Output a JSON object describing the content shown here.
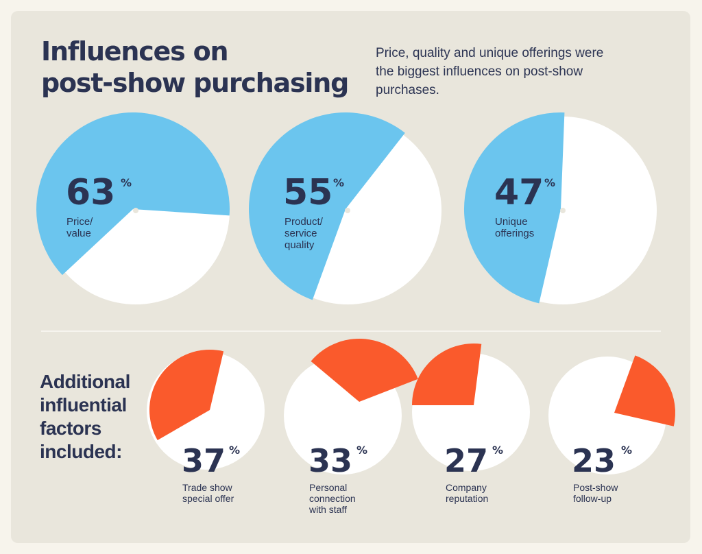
{
  "header": {
    "title_line1": "Influences on",
    "title_line2": "post-show purchasing",
    "subtitle": "Price, quality and unique offerings were the biggest influences on post-show purchases."
  },
  "additional": {
    "line1": "Additional",
    "line2": "influential",
    "line3": "factors",
    "line4": "included:"
  },
  "colors": {
    "primary": "#6bc5ee",
    "secondary": "#fa5a2c",
    "remainder": "#ffffff",
    "text": "#2b3352"
  },
  "chart_data": [
    {
      "type": "pie",
      "group": "main",
      "title": "",
      "categories": [
        "Price/ value",
        "Product/ service quality",
        "Unique offerings"
      ],
      "series": [
        {
          "values": [
            63,
            55,
            47
          ],
          "labels": [
            [
              "Price/",
              "value"
            ],
            [
              "Product/",
              "service",
              "quality"
            ],
            [
              "Unique",
              "offerings"
            ]
          ]
        }
      ],
      "unit": "%"
    },
    {
      "type": "pie",
      "group": "additional",
      "title": "",
      "categories": [
        "Trade show special offer",
        "Personal connection with staff",
        "Company reputation",
        "Post-show follow-up"
      ],
      "series": [
        {
          "values": [
            37,
            33,
            27,
            23
          ],
          "labels": [
            [
              "Trade show",
              "special offer"
            ],
            [
              "Personal",
              "connection",
              "with staff"
            ],
            [
              "Company",
              "reputation"
            ],
            [
              "Post-show",
              "follow-up"
            ]
          ]
        }
      ],
      "unit": "%"
    }
  ]
}
